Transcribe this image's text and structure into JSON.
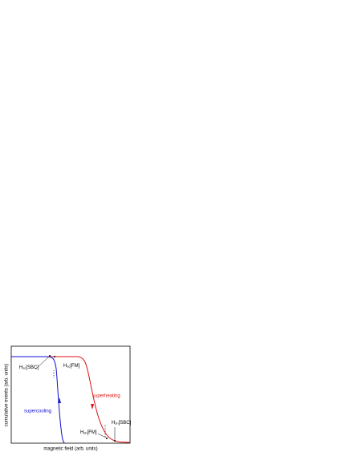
{
  "chart_data": {
    "type": "line",
    "xlabel": "magnetic field (arb. units)",
    "ylabel": "cumulative events (arb. units)",
    "annotations": [
      {
        "base": "H",
        "sub": "sc",
        "rest": "[SBC]"
      },
      {
        "base": "H",
        "sub": "sc",
        "rest": "[FM]"
      },
      {
        "base": "H",
        "sub": "sh",
        "rest": "[FM]"
      },
      {
        "base": "H",
        "sub": "sh",
        "rest": "[SBC]"
      }
    ],
    "curve_labels": [
      "supercooling",
      "superheating"
    ],
    "colors": [
      "#1010d0",
      "#e01010"
    ]
  }
}
